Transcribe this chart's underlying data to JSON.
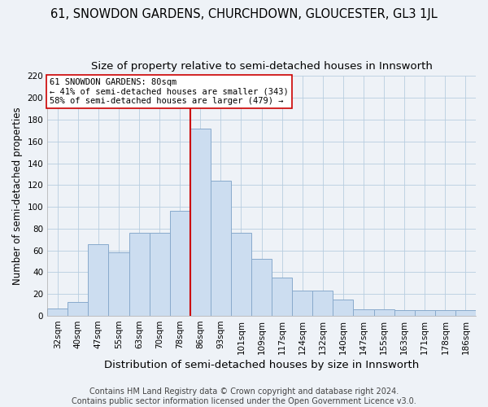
{
  "title1": "61, SNOWDON GARDENS, CHURCHDOWN, GLOUCESTER, GL3 1JL",
  "title2": "Size of property relative to semi-detached houses in Innsworth",
  "xlabel": "Distribution of semi-detached houses by size in Innsworth",
  "ylabel": "Number of semi-detached properties",
  "categories": [
    "32sqm",
    "40sqm",
    "47sqm",
    "55sqm",
    "63sqm",
    "70sqm",
    "78sqm",
    "86sqm",
    "93sqm",
    "101sqm",
    "109sqm",
    "117sqm",
    "124sqm",
    "132sqm",
    "140sqm",
    "147sqm",
    "155sqm",
    "163sqm",
    "171sqm",
    "178sqm",
    "186sqm"
  ],
  "values": [
    7,
    13,
    66,
    58,
    76,
    76,
    96,
    172,
    124,
    76,
    52,
    35,
    23,
    23,
    15,
    6,
    6,
    5,
    5,
    5,
    5
  ],
  "bar_color": "#ccddf0",
  "bar_edge_color": "#88aacc",
  "annotation_box_text1": "61 SNOWDON GARDENS: 80sqm",
  "annotation_box_text2": "← 41% of semi-detached houses are smaller (343)",
  "annotation_box_text3": "58% of semi-detached houses are larger (479) →",
  "vline_color": "#cc0000",
  "vline_x_index": 7,
  "ylim": [
    0,
    220
  ],
  "yticks": [
    0,
    20,
    40,
    60,
    80,
    100,
    120,
    140,
    160,
    180,
    200,
    220
  ],
  "footer1": "Contains HM Land Registry data © Crown copyright and database right 2024.",
  "footer2": "Contains public sector information licensed under the Open Government Licence v3.0.",
  "background_color": "#eef2f7",
  "plot_bg_color": "#eef2f7",
  "title1_fontsize": 10.5,
  "title2_fontsize": 9.5,
  "xlabel_fontsize": 9.5,
  "ylabel_fontsize": 8.5,
  "tick_fontsize": 7.5,
  "footer_fontsize": 7,
  "annot_fontsize": 7.5
}
